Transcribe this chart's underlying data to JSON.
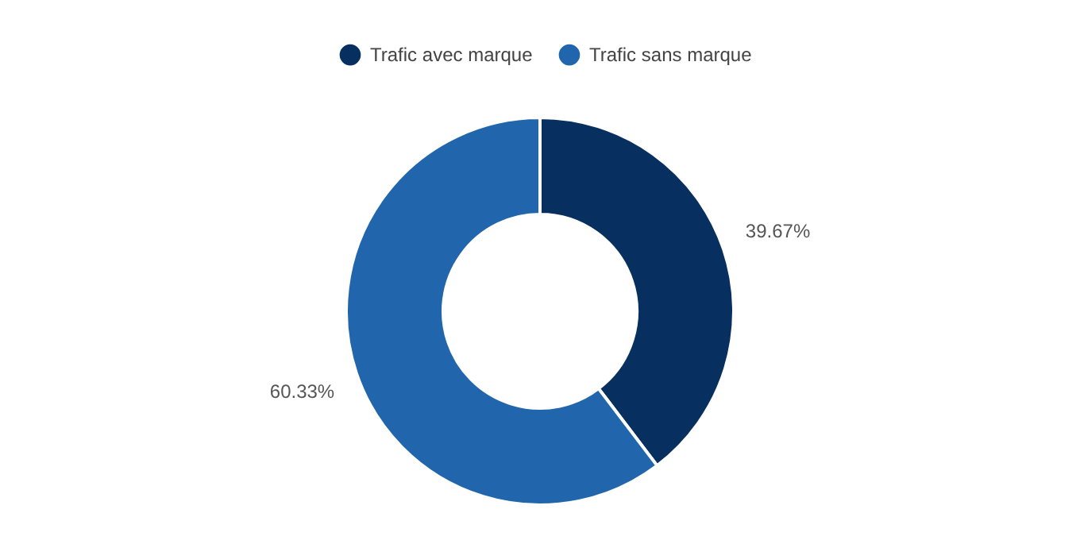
{
  "chart_data": {
    "type": "donut",
    "categories": [
      "Trafic avec marque",
      "Trafic sans marque"
    ],
    "values": [
      39.67,
      60.33
    ],
    "colors": [
      "#072f5f",
      "#2166ac"
    ],
    "value_labels": [
      "39.67%",
      "60.33%"
    ],
    "legend": "top"
  }
}
